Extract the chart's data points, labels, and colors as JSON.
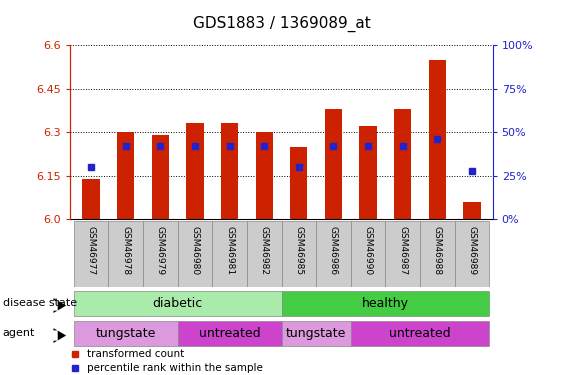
{
  "title": "GDS1883 / 1369089_at",
  "samples": [
    "GSM46977",
    "GSM46978",
    "GSM46979",
    "GSM46980",
    "GSM46981",
    "GSM46982",
    "GSM46985",
    "GSM46986",
    "GSM46990",
    "GSM46987",
    "GSM46988",
    "GSM46989"
  ],
  "bar_values": [
    6.14,
    6.3,
    6.29,
    6.33,
    6.33,
    6.3,
    6.25,
    6.38,
    6.32,
    6.38,
    6.55,
    6.06
  ],
  "percentile_rank": [
    30,
    42,
    42,
    42,
    42,
    42,
    30,
    42,
    42,
    42,
    46,
    28
  ],
  "ymin": 6.0,
  "ymax": 6.6,
  "yticks": [
    6.0,
    6.15,
    6.3,
    6.45,
    6.6
  ],
  "right_yticks": [
    0,
    25,
    50,
    75,
    100
  ],
  "bar_color": "#cc2200",
  "blue_color": "#2222cc",
  "bg_color": "#ffffff",
  "diabetic_light": "#aaeaaa",
  "healthy_dark": "#44cc44",
  "tungstate_color": "#dd99dd",
  "untreated_color": "#cc44cc",
  "disease_spans": [
    [
      0,
      6,
      "diabetic",
      "#aaeaaa"
    ],
    [
      6,
      12,
      "healthy",
      "#44cc44"
    ]
  ],
  "agent_spans": [
    [
      0,
      3,
      "tungstate",
      "#dd99dd"
    ],
    [
      3,
      6,
      "untreated",
      "#cc44cc"
    ],
    [
      6,
      8,
      "tungstate",
      "#dd99dd"
    ],
    [
      8,
      12,
      "untreated",
      "#cc44cc"
    ]
  ],
  "bar_width": 0.5
}
